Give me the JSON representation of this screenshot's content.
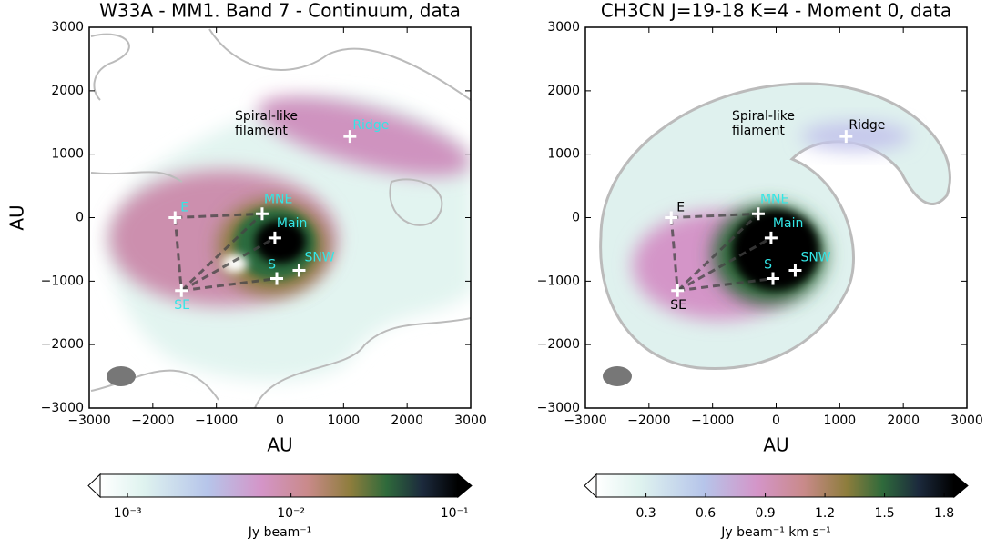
{
  "chart_data": [
    {
      "type": "image",
      "title": "W33A - MM1. Band 7 - Continuum, data",
      "x_label": "AU",
      "y_label": "AU",
      "xlim": [
        -3000,
        3000
      ],
      "ylim": [
        -3000,
        3000
      ],
      "xticks": [
        {
          "value": -3000,
          "label": "−3000"
        },
        {
          "value": -2000,
          "label": "−2000"
        },
        {
          "value": -1000,
          "label": "−1000"
        },
        0,
        1000,
        2000,
        3000
      ],
      "yticks": [
        {
          "value": -3000,
          "label": "−3000"
        },
        {
          "value": -2000,
          "label": "−2000"
        },
        {
          "value": -1000,
          "label": "−1000"
        },
        0,
        1000,
        2000,
        3000
      ],
      "annotation": [
        "Spiral-like",
        "filament"
      ],
      "sources": [
        {
          "name": "E",
          "x": -1650,
          "y": 0,
          "color": "#33e6e6"
        },
        {
          "name": "MNE",
          "x": -280,
          "y": 60,
          "color": "#33e6e6"
        },
        {
          "name": "Main",
          "x": -80,
          "y": -320,
          "color": "#33e6e6"
        },
        {
          "name": "S",
          "x": -50,
          "y": -960,
          "color": "#33e6e6"
        },
        {
          "name": "SNW",
          "x": 300,
          "y": -830,
          "color": "#33e6e6"
        },
        {
          "name": "SE",
          "x": -1550,
          "y": -1150,
          "color": "#33e6e6"
        },
        {
          "name": "Ridge",
          "x": 1100,
          "y": 1280,
          "color": "#33e6e6"
        }
      ],
      "colorbar": {
        "label": "Jy beam⁻¹",
        "log_scale": true,
        "lim": [
          0.00068,
          0.105
        ],
        "ticks": [
          {
            "value": 0.001,
            "label": "10⁻³"
          },
          {
            "value": 0.01,
            "label": "10⁻²"
          },
          {
            "value": 0.1,
            "label": "10⁻¹"
          }
        ]
      }
    },
    {
      "type": "image",
      "title": "CH3CN J=19-18 K=4 - Moment 0, data",
      "x_label": "AU",
      "xlim": [
        -3000,
        3000
      ],
      "ylim": [
        -3000,
        3000
      ],
      "xticks": [
        {
          "value": -3000,
          "label": "−3000"
        },
        {
          "value": -2000,
          "label": "−2000"
        },
        {
          "value": -1000,
          "label": "−1000"
        },
        0,
        1000,
        2000,
        3000
      ],
      "yticks": [
        {
          "value": -3000,
          "label": "−3000"
        },
        {
          "value": -2000,
          "label": "−2000"
        },
        {
          "value": -1000,
          "label": "−1000"
        },
        0,
        1000,
        2000,
        3000
      ],
      "annotation": [
        "Spiral-like",
        "filament"
      ],
      "sources": [
        {
          "name": "E",
          "x": -1650,
          "y": 0,
          "color": "#000000"
        },
        {
          "name": "MNE",
          "x": -280,
          "y": 60,
          "color": "#33e6e6"
        },
        {
          "name": "Main",
          "x": -80,
          "y": -320,
          "color": "#33e6e6"
        },
        {
          "name": "S",
          "x": -50,
          "y": -960,
          "color": "#33e6e6"
        },
        {
          "name": "SNW",
          "x": 300,
          "y": -830,
          "color": "#33e6e6"
        },
        {
          "name": "SE",
          "x": -1550,
          "y": -1150,
          "color": "#000000"
        },
        {
          "name": "Ridge",
          "x": 1100,
          "y": 1280,
          "color": "#000000"
        }
      ],
      "colorbar": {
        "label": "Jy beam⁻¹ km s⁻¹",
        "log_scale": false,
        "lim": [
          0.05,
          1.85
        ],
        "ticks": [
          0.3,
          0.6,
          0.9,
          1.2,
          1.5,
          1.8
        ]
      }
    }
  ]
}
